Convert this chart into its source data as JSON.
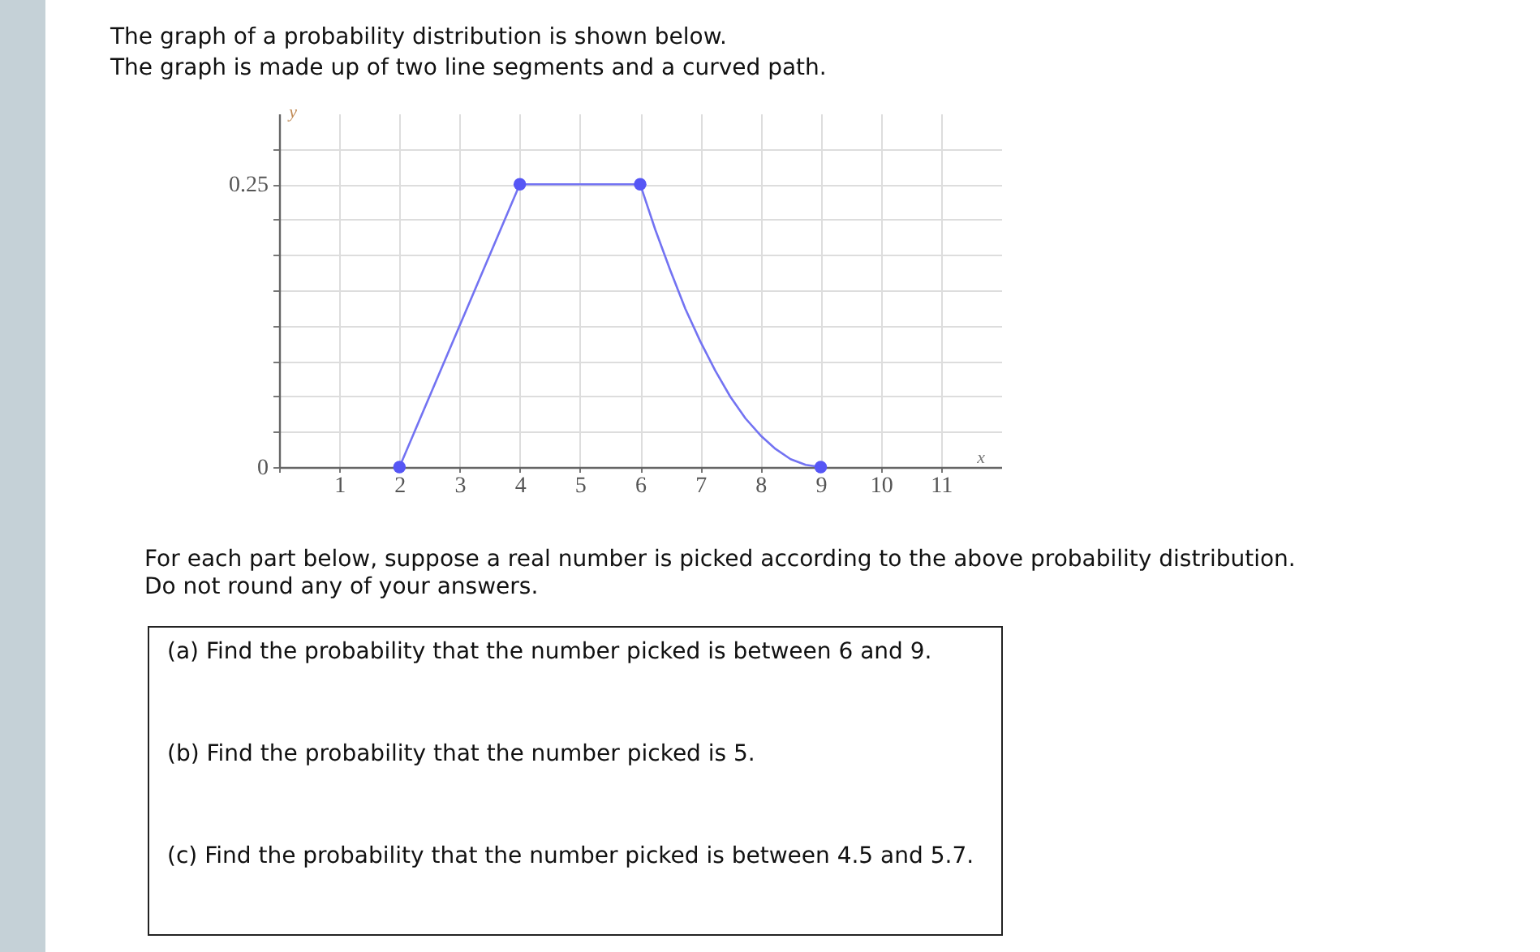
{
  "chart_data": {
    "type": "line",
    "title": "The graph of a probability distribution is shown below.",
    "subtitle": "The graph is made up of two line segments and a curved path.",
    "xlabel": "x",
    "ylabel": "y",
    "annotations": [
      "For each part below, suppose a real number is picked according to the above probability distribution.",
      "Do not round any of your answers.",
      "(a) Find the probability that the number picked is between 6 and 9.",
      "(b) Find the probability that the number picked is 5.",
      "(c) Find the probability that the number picked is between 4.5 and 5.7."
    ],
    "series": [
      {
        "type": "line",
        "color": "#7373f2",
        "marker": "none",
        "x": [
          2,
          4,
          6,
          6.25,
          6.5,
          6.75,
          7,
          7.25,
          7.5,
          7.75,
          8,
          8.25,
          8.5,
          8.75,
          9
        ],
        "values": [
          0,
          0.25,
          0.25,
          0.21,
          0.174,
          0.14,
          0.111,
          0.085,
          0.062,
          0.043,
          0.028,
          0.016,
          0.007,
          0.002,
          0
        ]
      },
      {
        "type": "scatter",
        "color": "#5656f5",
        "marker": "circle",
        "x": [
          2,
          4,
          6,
          9
        ],
        "values": [
          0,
          0.25,
          0.25,
          0
        ]
      }
    ],
    "xlim": [
      0,
      12
    ],
    "ylim": [
      0,
      0.3125
    ],
    "xticks": [
      {
        "value": 0,
        "label": null
      },
      1,
      2,
      3,
      4,
      5,
      6,
      7,
      8,
      9,
      10,
      11
    ],
    "yticks": [
      0,
      {
        "value": 0.03125,
        "label": null
      },
      {
        "value": 0.0625,
        "label": null
      },
      {
        "value": 0.09375,
        "label": null
      },
      {
        "value": 0.125,
        "label": null
      },
      {
        "value": 0.15625,
        "label": null
      },
      {
        "value": 0.1875,
        "label": null
      },
      {
        "value": 0.21875,
        "label": null
      },
      0.25,
      {
        "value": 0.28125,
        "label": null
      }
    ],
    "grid": true
  }
}
